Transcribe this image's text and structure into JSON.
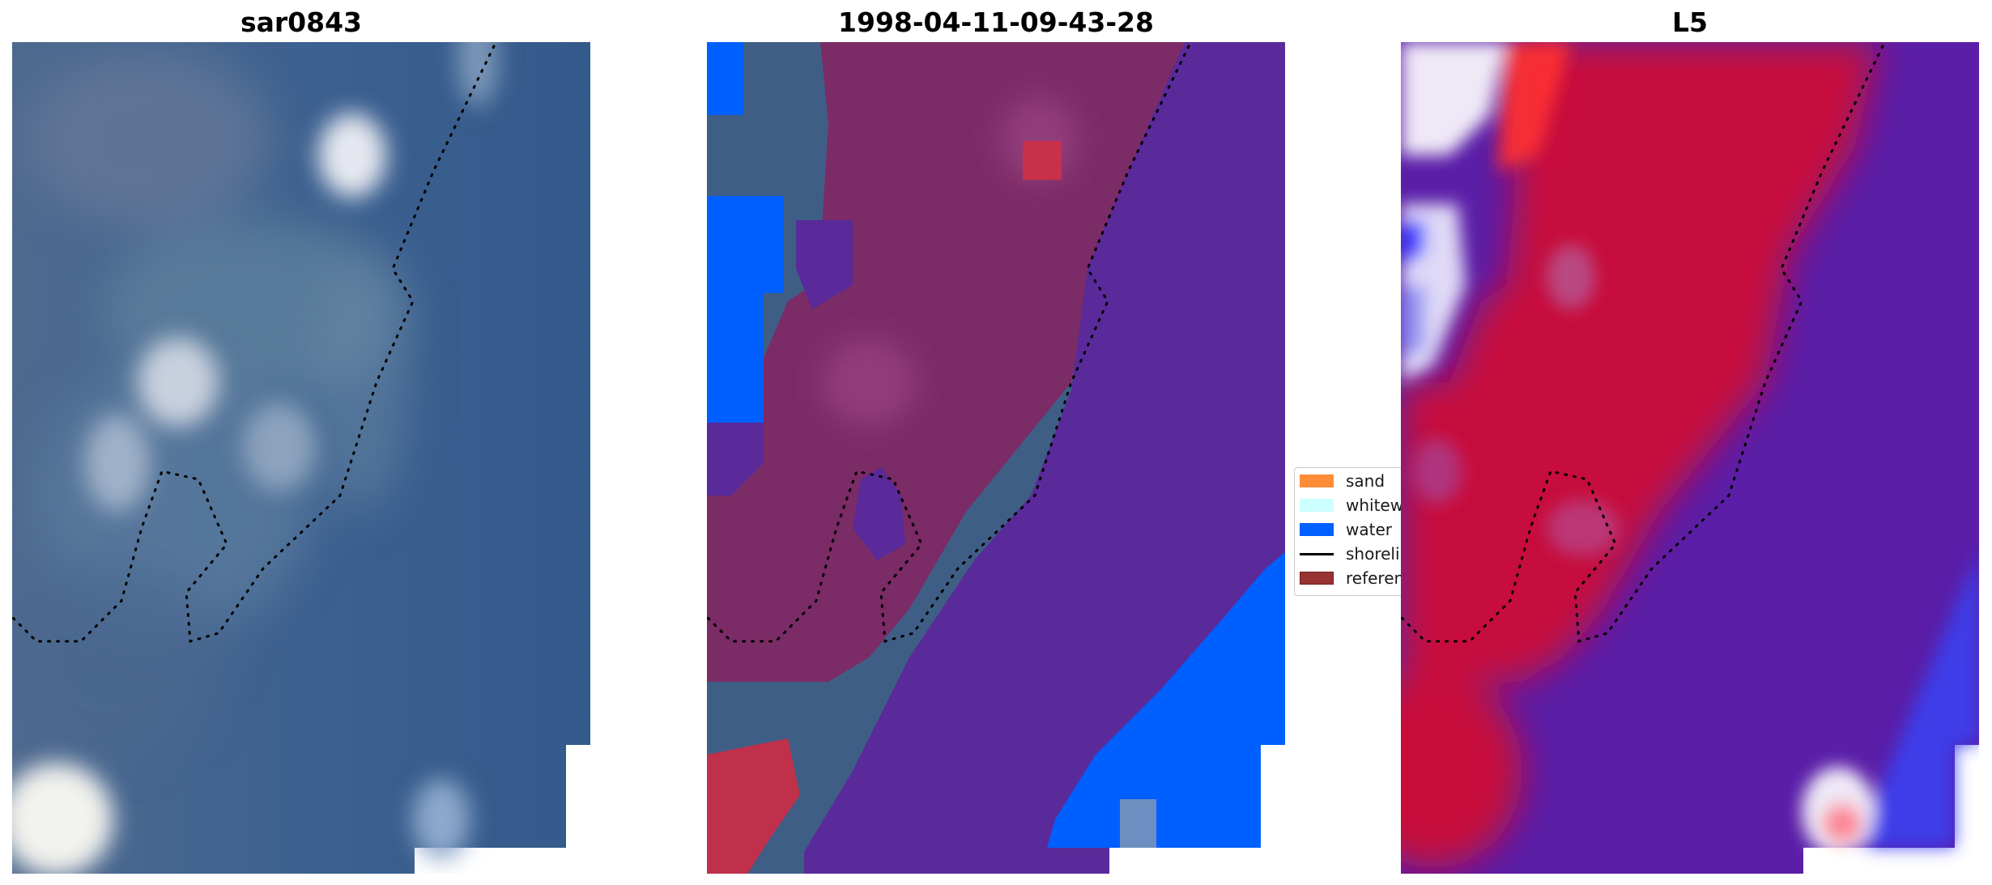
{
  "panels": [
    {
      "title": "sar0843"
    },
    {
      "title": "1998-04-11-09-43-28"
    },
    {
      "title": "L5"
    }
  ],
  "legend": {
    "items": [
      {
        "label": "sand",
        "color": "#ff8c37",
        "kind": "patch"
      },
      {
        "label": "whitewater",
        "color": "#ccffff",
        "kind": "patch"
      },
      {
        "label": "water",
        "color": "#005fff",
        "kind": "patch"
      },
      {
        "label": "shoreline",
        "color": "#000000",
        "kind": "line"
      },
      {
        "label": "reference",
        "color": "#993333",
        "kind": "patch"
      }
    ]
  },
  "colors": {
    "sea_blue": "#3a5f8c",
    "class_purple": "#5a2a9a",
    "class_red_overlay": "#8a2a60",
    "water_blue": "#005fff",
    "sand_red": "#c0304a",
    "prob_red": "#cc0a3a",
    "prob_purple": "#5a1ea8"
  }
}
